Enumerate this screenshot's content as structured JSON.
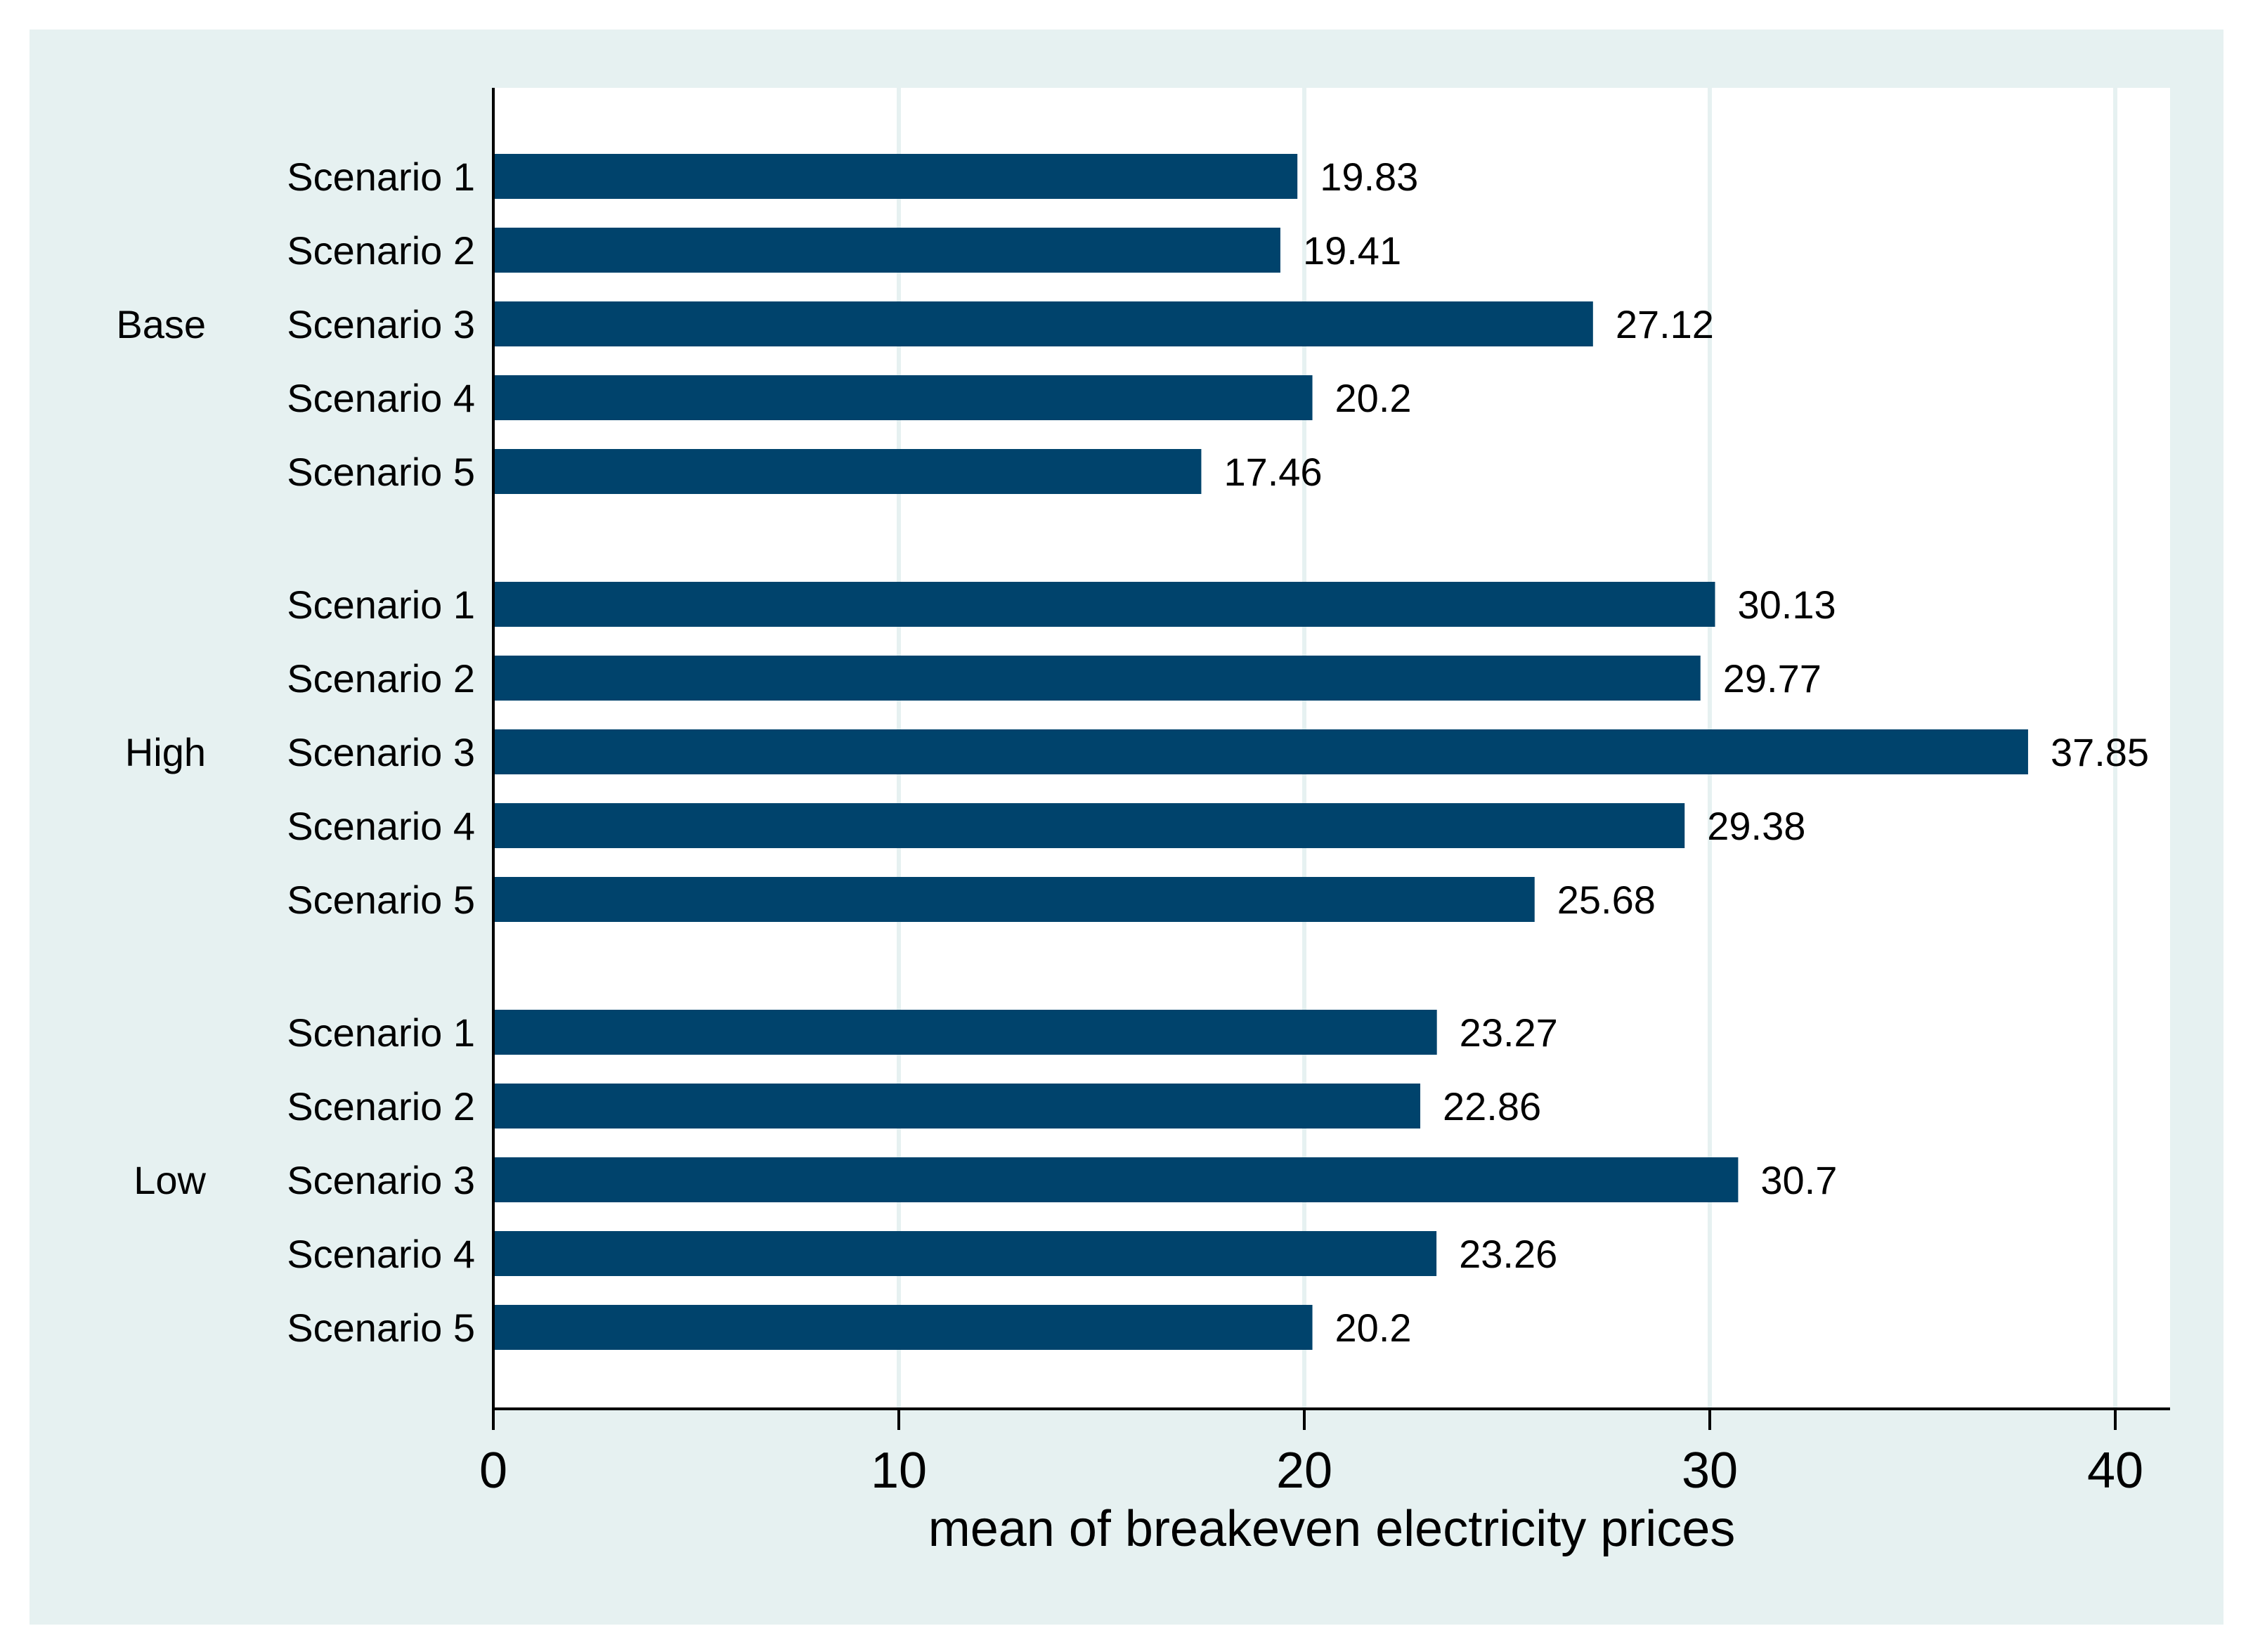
{
  "chart_data": {
    "type": "bar",
    "orientation": "horizontal",
    "xlabel": "mean of breakeven electricity prices",
    "xlim": [
      0,
      40
    ],
    "xticks": [
      0,
      10,
      20,
      30,
      40
    ],
    "grid": true,
    "groups": [
      {
        "name": "Base",
        "categories": [
          "Scenario 1",
          "Scenario 2",
          "Scenario 3",
          "Scenario 4",
          "Scenario 5"
        ],
        "values": [
          19.83,
          19.41,
          27.12,
          20.2,
          17.46
        ],
        "labels": [
          "19.83",
          "19.41",
          "27.12",
          "20.2",
          "17.46"
        ]
      },
      {
        "name": "High",
        "categories": [
          "Scenario 1",
          "Scenario 2",
          "Scenario 3",
          "Scenario 4",
          "Scenario 5"
        ],
        "values": [
          30.13,
          29.77,
          37.85,
          29.38,
          25.68
        ],
        "labels": [
          "30.13",
          "29.77",
          "37.85",
          "29.38",
          "25.68"
        ]
      },
      {
        "name": "Low",
        "categories": [
          "Scenario 1",
          "Scenario 2",
          "Scenario 3",
          "Scenario 4",
          "Scenario 5"
        ],
        "values": [
          23.27,
          22.86,
          30.7,
          23.26,
          20.2
        ],
        "labels": [
          "23.27",
          "22.86",
          "30.7",
          "23.26",
          "20.2"
        ]
      }
    ]
  },
  "colors": {
    "outer_background": "#e6f1f1",
    "plot_background": "#ffffff",
    "bar": "#00436c",
    "grid": "#e6f1f1",
    "axis": "#000000"
  }
}
